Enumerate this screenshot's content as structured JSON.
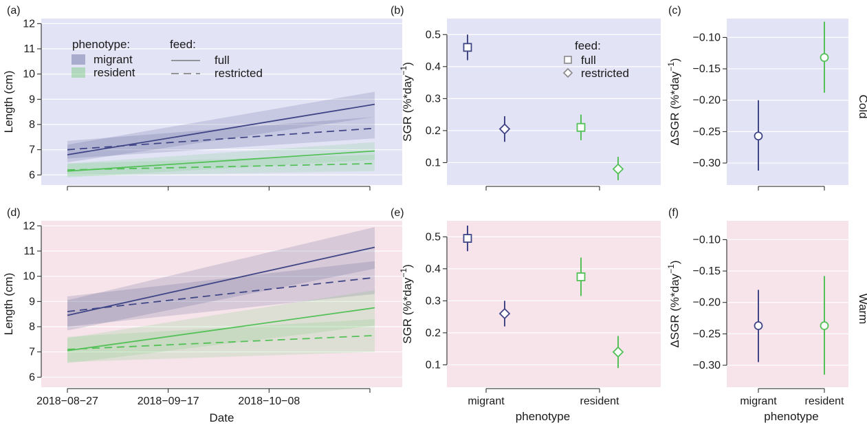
{
  "colors": {
    "migrant": "#3f4585",
    "resident": "#53c157",
    "cold_bg": "#e3e3f6",
    "warm_bg": "#f6e4ea",
    "axis": "#1a1a1a",
    "legend_grey": "#888888"
  },
  "panel_labels": [
    "(a)",
    "(b)",
    "(c)",
    "(d)",
    "(e)",
    "(f)"
  ],
  "strip_labels": [
    "Cold",
    "Warm"
  ],
  "chart_data": [
    {
      "id": "a",
      "type": "line",
      "xlabel": "",
      "ylabel": "Length (cm)",
      "x_dates": [
        "2018-08-27",
        "2018-10-30"
      ],
      "ylim": [
        5.6,
        12.2
      ],
      "yticks": [
        6,
        7,
        8,
        9,
        10,
        11,
        12
      ],
      "series": [
        {
          "phenotype": "migrant",
          "feed": "full",
          "y": [
            6.8,
            8.8
          ],
          "lower": [
            6.5,
            8.3
          ],
          "upper": [
            7.2,
            9.3
          ]
        },
        {
          "phenotype": "migrant",
          "feed": "restricted",
          "y": [
            7.0,
            7.85
          ],
          "lower": [
            6.65,
            7.45
          ],
          "upper": [
            7.35,
            8.3
          ]
        },
        {
          "phenotype": "resident",
          "feed": "full",
          "y": [
            6.15,
            6.95
          ],
          "lower": [
            5.9,
            6.6
          ],
          "upper": [
            6.45,
            7.3
          ]
        },
        {
          "phenotype": "resident",
          "feed": "restricted",
          "y": [
            6.2,
            6.45
          ],
          "lower": [
            5.95,
            6.15
          ],
          "upper": [
            6.45,
            6.8
          ]
        }
      ],
      "legend": {
        "phenotype_title": "phenotype:",
        "phenotype_items": [
          "migrant",
          "resident"
        ],
        "feed_title": "feed:",
        "feed_items": [
          "full",
          "restricted"
        ]
      }
    },
    {
      "id": "b",
      "type": "scatter",
      "ylabel": "SGR (%*day",
      "ylabel_sup": "−1",
      "ylabel_close": ")",
      "ylim": [
        0.03,
        0.55
      ],
      "yticks": [
        0.1,
        0.2,
        0.3,
        0.4,
        0.5
      ],
      "points": [
        {
          "phenotype": "migrant",
          "feed": "full",
          "y": 0.46,
          "lo": 0.42,
          "hi": 0.5
        },
        {
          "phenotype": "migrant",
          "feed": "restricted",
          "y": 0.205,
          "lo": 0.165,
          "hi": 0.245
        },
        {
          "phenotype": "resident",
          "feed": "full",
          "y": 0.21,
          "lo": 0.17,
          "hi": 0.25
        },
        {
          "phenotype": "resident",
          "feed": "restricted",
          "y": 0.08,
          "lo": 0.045,
          "hi": 0.118
        }
      ],
      "legend": {
        "title": "feed:",
        "items": [
          "full",
          "restricted"
        ]
      }
    },
    {
      "id": "c",
      "type": "scatter",
      "ylabel": "ΔSGR (%*day",
      "ylabel_sup": "−1",
      "ylabel_close": ")",
      "ylim": [
        -0.335,
        -0.07
      ],
      "yticks": [
        -0.3,
        -0.25,
        -0.2,
        -0.15,
        -0.1
      ],
      "ytick_labels": [
        "−0.30",
        "−0.25",
        "−0.20",
        "−0.15",
        "−0.10"
      ],
      "points": [
        {
          "phenotype": "migrant",
          "y": -0.257,
          "lo": -0.312,
          "hi": -0.2
        },
        {
          "phenotype": "resident",
          "y": -0.132,
          "lo": -0.188,
          "hi": -0.075
        }
      ]
    },
    {
      "id": "d",
      "type": "line",
      "xlabel": "Date",
      "ylabel": "Length (cm)",
      "x_dates": [
        "2018-08-27",
        "2018-10-30"
      ],
      "xticks": [
        "2018-08-27",
        "2018-09-17",
        "2018-10-08"
      ],
      "xtick_labels": [
        "2018−08−27",
        "2018−09−17",
        "2018−10−08"
      ],
      "ylim": [
        5.6,
        12.2
      ],
      "yticks": [
        6,
        7,
        8,
        9,
        10,
        11,
        12
      ],
      "series": [
        {
          "phenotype": "migrant",
          "feed": "full",
          "y": [
            8.45,
            11.15
          ],
          "lower": [
            7.85,
            10.3
          ],
          "upper": [
            9.05,
            11.95
          ]
        },
        {
          "phenotype": "migrant",
          "feed": "restricted",
          "y": [
            8.6,
            9.95
          ],
          "lower": [
            8.0,
            9.3
          ],
          "upper": [
            9.2,
            10.6
          ]
        },
        {
          "phenotype": "resident",
          "feed": "full",
          "y": [
            7.05,
            8.75
          ],
          "lower": [
            6.55,
            8.05
          ],
          "upper": [
            7.55,
            9.45
          ]
        },
        {
          "phenotype": "resident",
          "feed": "restricted",
          "y": [
            7.1,
            7.65
          ],
          "lower": [
            6.6,
            7.0
          ],
          "upper": [
            7.6,
            8.3
          ]
        }
      ]
    },
    {
      "id": "e",
      "type": "scatter",
      "xlabel": "phenotype",
      "categories": [
        "migrant",
        "resident"
      ],
      "ylabel": "SGR (%*day",
      "ylabel_sup": "−1",
      "ylabel_close": ")",
      "ylim": [
        0.03,
        0.55
      ],
      "yticks": [
        0.1,
        0.2,
        0.3,
        0.4,
        0.5
      ],
      "points": [
        {
          "phenotype": "migrant",
          "feed": "full",
          "y": 0.495,
          "lo": 0.455,
          "hi": 0.535
        },
        {
          "phenotype": "migrant",
          "feed": "restricted",
          "y": 0.26,
          "lo": 0.22,
          "hi": 0.3
        },
        {
          "phenotype": "resident",
          "feed": "full",
          "y": 0.375,
          "lo": 0.315,
          "hi": 0.435
        },
        {
          "phenotype": "resident",
          "feed": "restricted",
          "y": 0.14,
          "lo": 0.09,
          "hi": 0.19
        }
      ]
    },
    {
      "id": "f",
      "type": "scatter",
      "xlabel": "phenotype",
      "categories": [
        "migrant",
        "resident"
      ],
      "ylabel": "ΔSGR (%*day",
      "ylabel_sup": "−1",
      "ylabel_close": ")",
      "ylim": [
        -0.335,
        -0.07
      ],
      "yticks": [
        -0.3,
        -0.25,
        -0.2,
        -0.15,
        -0.1
      ],
      "ytick_labels": [
        "−0.30",
        "−0.25",
        "−0.20",
        "−0.15",
        "−0.10"
      ],
      "points": [
        {
          "phenotype": "migrant",
          "y": -0.237,
          "lo": -0.295,
          "hi": -0.18
        },
        {
          "phenotype": "resident",
          "y": -0.237,
          "lo": -0.315,
          "hi": -0.158
        }
      ]
    }
  ]
}
